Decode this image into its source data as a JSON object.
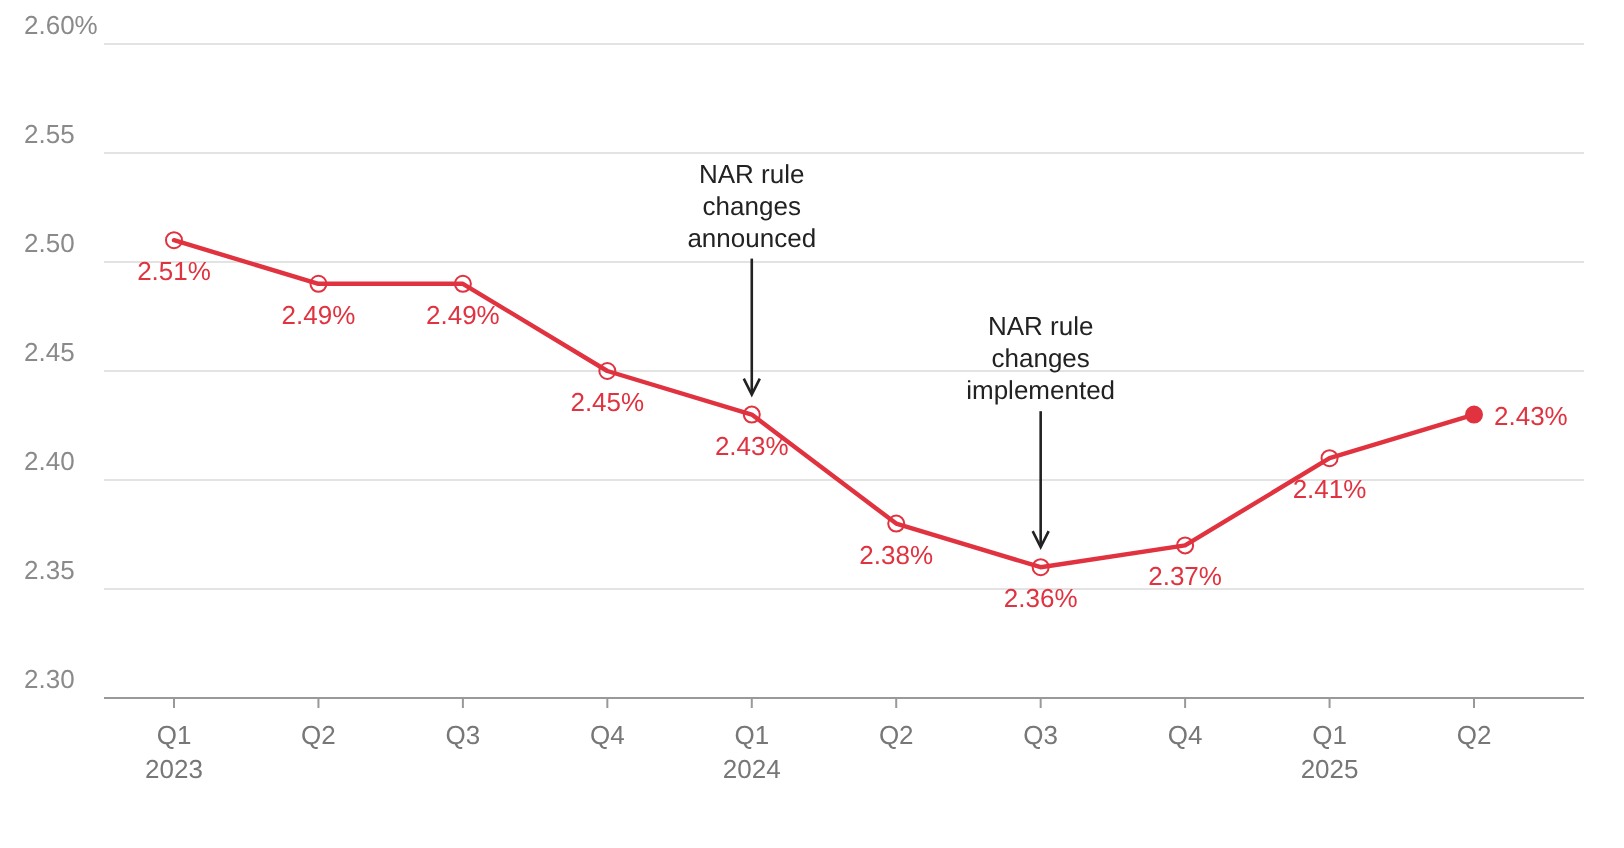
{
  "chart_data": {
    "type": "line",
    "categories": [
      "Q1 2023",
      "Q2",
      "Q3",
      "Q4",
      "Q1 2024",
      "Q2",
      "Q3",
      "Q4",
      "Q1 2025",
      "Q2"
    ],
    "series": [
      {
        "color": "#e0323f",
        "values": [
          2.51,
          2.49,
          2.49,
          2.45,
          2.43,
          2.38,
          2.36,
          2.37,
          2.41,
          2.43
        ]
      }
    ],
    "ylim": [
      2.3,
      2.6
    ],
    "yticks": [
      {
        "value": 2.3,
        "label": "2.30"
      },
      {
        "value": 2.35,
        "label": "2.35"
      },
      {
        "value": 2.4,
        "label": "2.40"
      },
      {
        "value": 2.45,
        "label": "2.45"
      },
      {
        "value": 2.5,
        "label": "2.50"
      },
      {
        "value": 2.55,
        "label": "2.55"
      },
      {
        "value": 2.6,
        "label": "2.60%"
      }
    ],
    "value_labels": [
      "2.51%",
      "2.49%",
      "2.49%",
      "2.45%",
      "2.43%",
      "2.38%",
      "2.36%",
      "2.37%",
      "2.41%",
      "2.43%"
    ],
    "annotations": [
      "NAR rule\nchanges\nannounced",
      "NAR rule\nchanges\nimplemented"
    ],
    "grid": "y",
    "marker": "circle",
    "line_style": "solid"
  }
}
